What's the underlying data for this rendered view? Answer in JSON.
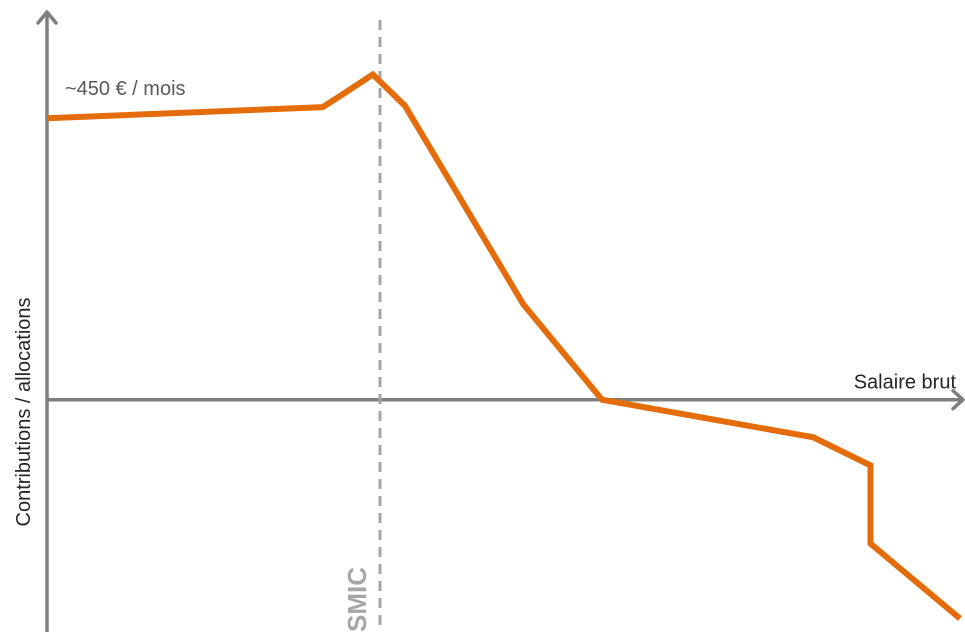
{
  "chart_data": {
    "type": "line",
    "xlabel": "Salaire brut",
    "ylabel": "Contributions / allocations",
    "series": [
      {
        "color": "#e46c0a",
        "x": [
          0.0,
          0.77,
          0.83,
          0.91,
          1.0,
          1.33,
          1.55,
          2.14,
          2.3,
          2.3,
          2.55
        ],
        "y": [
          450,
          468,
          490,
          520,
          470,
          153,
          0,
          -60,
          -105,
          -230,
          -350
        ]
      }
    ],
    "reference_lines": [
      {
        "label": "SMIC",
        "x": 0.93,
        "style": "dashed",
        "color": "#a6a6a6"
      }
    ],
    "annotations": [
      {
        "text": "~450 € / mois",
        "x": 0.05,
        "y": 500
      }
    ],
    "xlim": [
      0,
      2.55
    ],
    "ylim": [
      -365,
      620
    ],
    "x_ticks": "none",
    "y_ticks": "none",
    "grid": false,
    "legend": "none"
  }
}
